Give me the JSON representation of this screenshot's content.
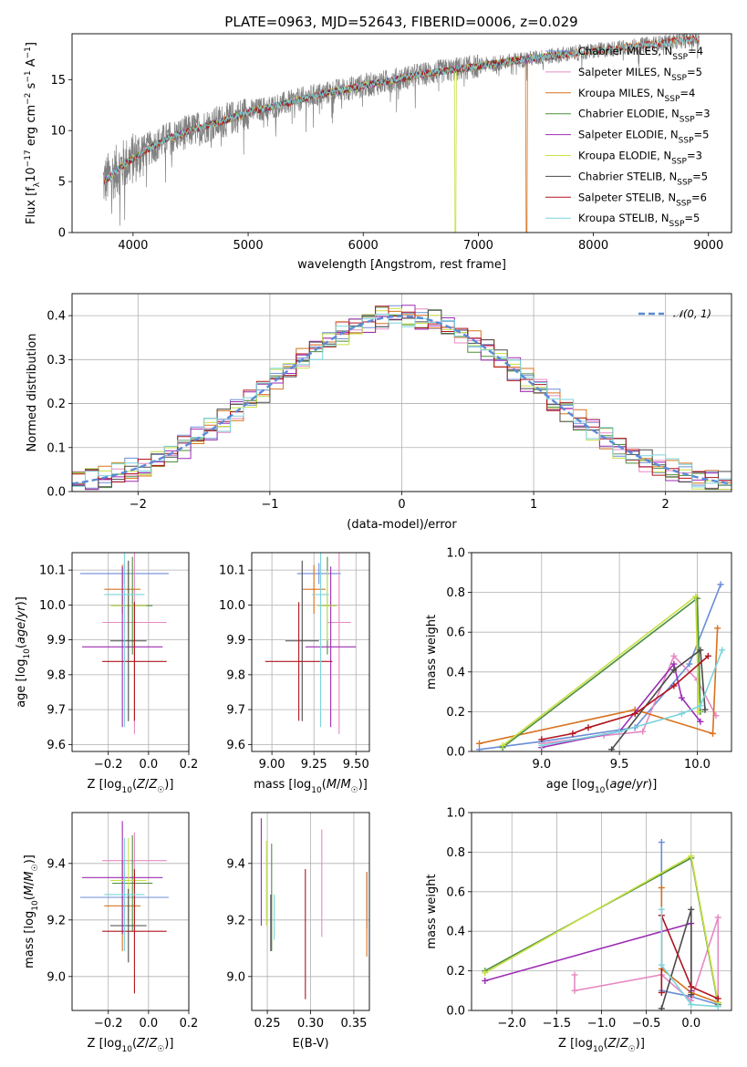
{
  "figure_title": "PLATE=0963, MJD=52643, FIBERID=0006, z=0.029",
  "colors": {
    "s0": "#6b8dd6",
    "s1": "#e58ac3",
    "s2": "#d8731f",
    "s3": "#4c8f3c",
    "s4": "#9c2db3",
    "s5": "#c8df45",
    "s6": "#4a4a4a",
    "s7": "#b0141d",
    "s8": "#7bd4db",
    "obs": "#808080",
    "norm": "#5b8ad8"
  },
  "chart_data": [
    {
      "type": "line",
      "name": "spectrum",
      "title": "PLATE=0963, MJD=52643, FIBERID=0006, z=0.029",
      "xlabel": "wavelength [Angstrom, rest frame]",
      "ylabel": "Flux [fλ10⁻¹⁷ erg cm⁻² s⁻¹ A⁻¹]",
      "xlim": [
        3470,
        9200
      ],
      "ylim": [
        0,
        19.5
      ],
      "xticks": [
        4000,
        5000,
        6000,
        7000,
        8000,
        9000
      ],
      "yticks": [
        0,
        5,
        10,
        15
      ],
      "continuum": {
        "x": [
          3750,
          3900,
          4100,
          4300,
          4500,
          4800,
          5000,
          5300,
          5600,
          5900,
          6200,
          6500,
          6800,
          7100,
          7400,
          7700,
          8000,
          8300,
          8600,
          8900
        ],
        "y": [
          5.0,
          6.5,
          8.0,
          9.2,
          10.0,
          11.0,
          11.8,
          12.6,
          13.5,
          14.2,
          14.8,
          15.5,
          16.0,
          16.5,
          17.0,
          17.4,
          17.8,
          18.2,
          18.6,
          19.0
        ]
      },
      "dropouts": [
        {
          "series": 5,
          "x": 6800
        },
        {
          "series": 2,
          "x": 7420
        }
      ],
      "legend": [
        {
          "label": "Chabrier MILES, N",
          "sub": "SSP",
          "n": "=4"
        },
        {
          "label": "Salpeter MILES, N",
          "sub": "SSP",
          "n": "=5"
        },
        {
          "label": "Kroupa MILES, N",
          "sub": "SSP",
          "n": "=4"
        },
        {
          "label": "Chabrier ELODIE, N",
          "sub": "SSP",
          "n": "=3"
        },
        {
          "label": "Salpeter ELODIE, N",
          "sub": "SSP",
          "n": "=5"
        },
        {
          "label": "Kroupa ELODIE, N",
          "sub": "SSP",
          "n": "=3"
        },
        {
          "label": "Chabrier STELIB, N",
          "sub": "SSP",
          "n": "=5"
        },
        {
          "label": "Salpeter STELIB, N",
          "sub": "SSP",
          "n": "=6"
        },
        {
          "label": "Kroupa STELIB, N",
          "sub": "SSP",
          "n": "=5"
        }
      ],
      "legend_position": "upper right"
    },
    {
      "type": "line",
      "name": "residual-histograms",
      "xlabel": "(data-model)/error",
      "ylabel": "Normed distribution",
      "xlim": [
        -2.5,
        2.5
      ],
      "ylim": [
        0,
        0.45
      ],
      "xticks": [
        -2,
        -1,
        0,
        1,
        2
      ],
      "xticklabels": [
        "−2",
        "−1",
        "0",
        "1",
        "2"
      ],
      "yticks": [
        0.0,
        0.1,
        0.2,
        0.3,
        0.4
      ],
      "yticklabels": [
        "0.0",
        "0.1",
        "0.2",
        "0.3",
        "0.4"
      ],
      "bin_width": 0.1,
      "legend": "𝒩(0, 1)",
      "legend_position": "upper right",
      "grid": true
    },
    {
      "type": "scatter",
      "name": "age-vs-Z",
      "xlabel": "Z [log₁₀(Z/Z☉)]",
      "ylabel": "age  [log₁₀(age/yr)]",
      "xlim": [
        -0.38,
        0.2
      ],
      "ylim": [
        9.58,
        10.15
      ],
      "xticks": [
        -0.2,
        0.0,
        0.2
      ],
      "xticklabels": [
        "−0.2",
        "0.0",
        "0.2"
      ],
      "yticks": [
        9.6,
        9.7,
        9.8,
        9.9,
        10.0,
        10.1
      ],
      "yticklabels": [
        "9.6",
        "9.7",
        "9.8",
        "9.9",
        "10.0",
        "10.1"
      ],
      "points": [
        {
          "s": 0,
          "x": -0.12,
          "xerr": 0.22,
          "y": 10.09,
          "yerr": 0.03
        },
        {
          "s": 1,
          "x": -0.07,
          "xerr": 0.16,
          "y": 9.95,
          "yerr": 0.32
        },
        {
          "s": 2,
          "x": -0.13,
          "xerr": 0.09,
          "y": 10.045,
          "yerr": 0.07
        },
        {
          "s": 3,
          "x": -0.08,
          "xerr": 0.1,
          "y": 9.998,
          "yerr": 0.14
        },
        {
          "s": 4,
          "x": -0.13,
          "xerr": 0.2,
          "y": 9.88,
          "yerr": 0.23
        },
        {
          "s": 5,
          "x": -0.1,
          "xerr": 0.09,
          "y": 9.998,
          "yerr": 0.1
        },
        {
          "s": 6,
          "x": -0.1,
          "xerr": 0.09,
          "y": 9.897,
          "yerr": 0.23
        },
        {
          "s": 7,
          "x": -0.07,
          "xerr": 0.16,
          "y": 9.838,
          "yerr": 0.17
        },
        {
          "s": 8,
          "x": -0.12,
          "xerr": 0.1,
          "y": 10.03,
          "yerr": 0.38
        }
      ]
    },
    {
      "type": "scatter",
      "name": "age-vs-mass",
      "xlabel": "mass [log₁₀(M/M☉)]",
      "ylabel": "",
      "xlim": [
        8.88,
        9.58
      ],
      "ylim": [
        9.58,
        10.15
      ],
      "xticks": [
        9.0,
        9.25,
        9.5
      ],
      "xticklabels": [
        "9.00",
        "9.25",
        "9.50"
      ],
      "yticks": [
        9.6,
        9.7,
        9.8,
        9.9,
        10.0,
        10.1
      ],
      "yticklabels": [
        "9.6",
        "9.7",
        "9.8",
        "9.9",
        "10.0",
        "10.1"
      ],
      "points": [
        {
          "s": 0,
          "x": 9.28,
          "xerr": 0.13,
          "y": 10.09,
          "yerr": 0.03
        },
        {
          "s": 1,
          "x": 9.4,
          "xerr": 0.07,
          "y": 9.95,
          "yerr": 0.32
        },
        {
          "s": 2,
          "x": 9.25,
          "xerr": 0.07,
          "y": 10.045,
          "yerr": 0.07
        },
        {
          "s": 3,
          "x": 9.33,
          "xerr": 0.05,
          "y": 9.998,
          "yerr": 0.14
        },
        {
          "s": 4,
          "x": 9.35,
          "xerr": 0.15,
          "y": 9.88,
          "yerr": 0.23
        },
        {
          "s": 5,
          "x": 9.33,
          "xerr": 0.06,
          "y": 9.998,
          "yerr": 0.1
        },
        {
          "s": 6,
          "x": 9.18,
          "xerr": 0.1,
          "y": 9.897,
          "yerr": 0.23
        },
        {
          "s": 7,
          "x": 9.16,
          "xerr": 0.2,
          "y": 9.838,
          "yerr": 0.17
        },
        {
          "s": 8,
          "x": 9.29,
          "xerr": 0.05,
          "y": 10.03,
          "yerr": 0.38
        }
      ]
    },
    {
      "type": "line",
      "name": "mass-weight-vs-age",
      "xlabel": "age  [log₁₀(age/yr)]",
      "ylabel": "mass weight",
      "xlim": [
        8.55,
        10.22
      ],
      "ylim": [
        0.0,
        1.0
      ],
      "xticks": [
        9.0,
        9.5,
        10.0
      ],
      "xticklabels": [
        "9.0",
        "9.5",
        "10.0"
      ],
      "yticks": [
        0.0,
        0.2,
        0.4,
        0.6,
        0.8,
        1.0
      ],
      "yticklabels": [
        "0.0",
        "0.2",
        "0.4",
        "0.6",
        "0.8",
        "1.0"
      ],
      "series": [
        {
          "s": 0,
          "x": [
            8.6,
            9.0,
            9.6,
            9.95,
            10.15
          ],
          "y": [
            0.01,
            0.05,
            0.12,
            0.44,
            0.84
          ]
        },
        {
          "s": 1,
          "x": [
            9.0,
            9.4,
            9.65,
            9.85,
            10.0,
            10.12
          ],
          "y": [
            0.04,
            0.08,
            0.1,
            0.48,
            0.36,
            0.18
          ]
        },
        {
          "s": 2,
          "x": [
            8.6,
            9.6,
            10.1,
            10.13
          ],
          "y": [
            0.04,
            0.21,
            0.09,
            0.62
          ]
        },
        {
          "s": 3,
          "x": [
            8.75,
            10.0,
            10.02
          ],
          "y": [
            0.02,
            0.77,
            0.2
          ]
        },
        {
          "s": 4,
          "x": [
            9.0,
            9.5,
            9.85,
            9.9,
            10.02
          ],
          "y": [
            0.02,
            0.1,
            0.44,
            0.27,
            0.15
          ]
        },
        {
          "s": 5,
          "x": [
            8.75,
            9.99,
            10.01
          ],
          "y": [
            0.03,
            0.78,
            0.2
          ]
        },
        {
          "s": 6,
          "x": [
            9.45,
            9.85,
            10.02,
            10.05
          ],
          "y": [
            0.01,
            0.41,
            0.51,
            0.21
          ]
        },
        {
          "s": 7,
          "x": [
            9.0,
            9.2,
            9.3,
            9.6,
            9.85,
            10.07
          ],
          "y": [
            0.06,
            0.09,
            0.12,
            0.19,
            0.33,
            0.48
          ]
        },
        {
          "s": 8,
          "x": [
            9.0,
            9.5,
            9.9,
            10.02,
            10.16
          ],
          "y": [
            0.03,
            0.1,
            0.19,
            0.23,
            0.51
          ]
        }
      ]
    },
    {
      "type": "scatter",
      "name": "mass-vs-Z",
      "xlabel": "Z [log₁₀(Z/Z☉)]",
      "ylabel": "mass [log₁₀(M/M☉)]",
      "xlim": [
        -0.38,
        0.2
      ],
      "ylim": [
        8.88,
        9.58
      ],
      "xticks": [
        -0.2,
        0.0,
        0.2
      ],
      "xticklabels": [
        "−0.2",
        "0.0",
        "0.2"
      ],
      "yticks": [
        9.0,
        9.2,
        9.4
      ],
      "yticklabels": [
        "9.0",
        "9.2",
        "9.4"
      ],
      "points": [
        {
          "s": 0,
          "x": -0.12,
          "xerr": 0.22,
          "y": 9.28,
          "yerr": 0.13
        },
        {
          "s": 1,
          "x": -0.07,
          "xerr": 0.16,
          "y": 9.41,
          "yerr": 0.1
        },
        {
          "s": 2,
          "x": -0.13,
          "xerr": 0.09,
          "y": 9.25,
          "yerr": 0.16
        },
        {
          "s": 3,
          "x": -0.08,
          "xerr": 0.1,
          "y": 9.33,
          "yerr": 0.17
        },
        {
          "s": 4,
          "x": -0.13,
          "xerr": 0.2,
          "y": 9.35,
          "yerr": 0.2
        },
        {
          "s": 5,
          "x": -0.1,
          "xerr": 0.09,
          "y": 9.34,
          "yerr": 0.15
        },
        {
          "s": 6,
          "x": -0.1,
          "xerr": 0.09,
          "y": 9.18,
          "yerr": 0.13
        },
        {
          "s": 7,
          "x": -0.07,
          "xerr": 0.16,
          "y": 9.16,
          "yerr": 0.22
        },
        {
          "s": 8,
          "x": -0.12,
          "xerr": 0.1,
          "y": 9.29,
          "yerr": 0.2
        }
      ]
    },
    {
      "type": "scatter",
      "name": "mass-vs-ebv",
      "xlabel": "E(B-V)",
      "ylabel": "",
      "xlim": [
        0.232,
        0.368
      ],
      "ylim": [
        8.88,
        9.58
      ],
      "xticks": [
        0.25,
        0.3,
        0.35
      ],
      "xticklabels": [
        "0.25",
        "0.30",
        "0.35"
      ],
      "yticks": [
        9.0,
        9.2,
        9.4
      ],
      "yticklabels": [
        "9.0",
        "9.2",
        "9.4"
      ],
      "points": [
        {
          "s": 0,
          "x": 0.365,
          "y": 9.27,
          "yerr": 0.1
        },
        {
          "s": 1,
          "x": 0.313,
          "y": 9.33,
          "yerr": 0.19
        },
        {
          "s": 2,
          "x": 0.365,
          "y": 9.22,
          "yerr": 0.15
        },
        {
          "s": 3,
          "x": 0.255,
          "y": 9.28,
          "yerr": 0.19
        },
        {
          "s": 4,
          "x": 0.243,
          "y": 9.37,
          "yerr": 0.19
        },
        {
          "s": 5,
          "x": 0.249,
          "y": 9.33,
          "yerr": 0.15
        },
        {
          "s": 6,
          "x": 0.254,
          "y": 9.19,
          "yerr": 0.1
        },
        {
          "s": 7,
          "x": 0.294,
          "y": 9.15,
          "yerr": 0.23
        },
        {
          "s": 8,
          "x": 0.258,
          "y": 9.21,
          "yerr": 0.08
        }
      ]
    },
    {
      "type": "line",
      "name": "mass-weight-vs-Z",
      "xlabel": "Z [log₁₀(Z/Z☉)]",
      "ylabel": "mass weight",
      "xlim": [
        -2.45,
        0.45
      ],
      "ylim": [
        0.0,
        1.0
      ],
      "xticks": [
        -2.0,
        -1.5,
        -1.0,
        -0.5,
        0.0
      ],
      "xticklabels": [
        "−2.0",
        "−1.5",
        "−1.0",
        "−0.5",
        "0.0"
      ],
      "yticks": [
        0.0,
        0.2,
        0.4,
        0.6,
        0.8,
        1.0
      ],
      "yticklabels": [
        "0.0",
        "0.2",
        "0.4",
        "0.6",
        "0.8",
        "1.0"
      ],
      "series": [
        {
          "s": 0,
          "x": [
            -0.33,
            -0.33,
            0.0,
            0.3
          ],
          "y": [
            0.85,
            0.1,
            0.07,
            0.03
          ]
        },
        {
          "s": 1,
          "x": [
            -1.3,
            -1.3,
            -0.33,
            0.0,
            0.3,
            0.3
          ],
          "y": [
            0.18,
            0.1,
            0.18,
            0.05,
            0.47,
            0.03
          ]
        },
        {
          "s": 2,
          "x": [
            -0.33,
            -0.33,
            0.0,
            0.3
          ],
          "y": [
            0.62,
            0.21,
            0.09,
            0.04
          ]
        },
        {
          "s": 3,
          "x": [
            -2.3,
            0.0,
            0.3
          ],
          "y": [
            0.2,
            0.77,
            0.03
          ]
        },
        {
          "s": 4,
          "x": [
            -2.3,
            0.0,
            0.0
          ],
          "y": [
            0.15,
            0.44,
            0.1
          ]
        },
        {
          "s": 5,
          "x": [
            -2.3,
            0.0,
            0.3
          ],
          "y": [
            0.19,
            0.78,
            0.04
          ]
        },
        {
          "s": 6,
          "x": [
            -0.33,
            0.0,
            0.0
          ],
          "y": [
            0.01,
            0.51,
            0.08
          ]
        },
        {
          "s": 7,
          "x": [
            -0.33,
            -0.33,
            0.0,
            0.3
          ],
          "y": [
            0.09,
            0.48,
            0.12,
            0.06
          ]
        },
        {
          "s": 8,
          "x": [
            -0.33,
            -0.33,
            0.0,
            0.3
          ],
          "y": [
            0.51,
            0.23,
            0.03,
            0.02
          ]
        }
      ]
    }
  ]
}
